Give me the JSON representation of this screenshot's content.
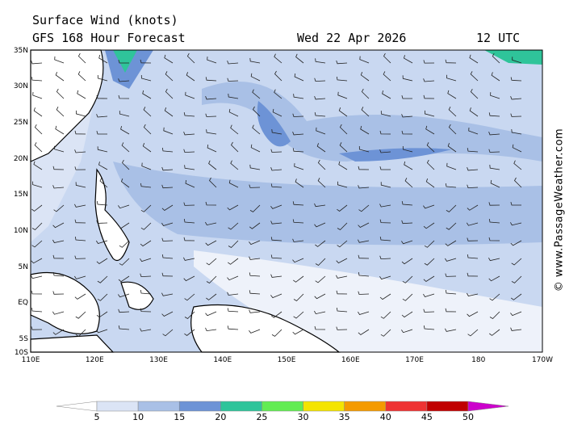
{
  "header": {
    "title": "Surface Wind (knots)",
    "subtitle": "GFS 168 Hour Forecast",
    "date": "Wed 22 Apr 2026",
    "time": "12 UTC"
  },
  "map": {
    "lat_labels": [
      "35N",
      "30N",
      "25N",
      "20N",
      "15N",
      "10N",
      "5N",
      "EQ",
      "5S",
      "10S"
    ],
    "lon_labels": [
      "110E",
      "120E",
      "130E",
      "140E",
      "150E",
      "160E",
      "170E",
      "180",
      "170W"
    ]
  },
  "colorbar": {
    "labels": [
      "5",
      "10",
      "15",
      "20",
      "25",
      "30",
      "35",
      "40",
      "45",
      "50"
    ],
    "colors": [
      "#ffffff",
      "#dbe4f5",
      "#a9c0e6",
      "#6d93d6",
      "#2fc49a",
      "#62ec52",
      "#f4e400",
      "#f49a00",
      "#ee3333",
      "#c00000",
      "#cc00cc"
    ]
  },
  "credit": "© www.PassageWeather.com"
}
